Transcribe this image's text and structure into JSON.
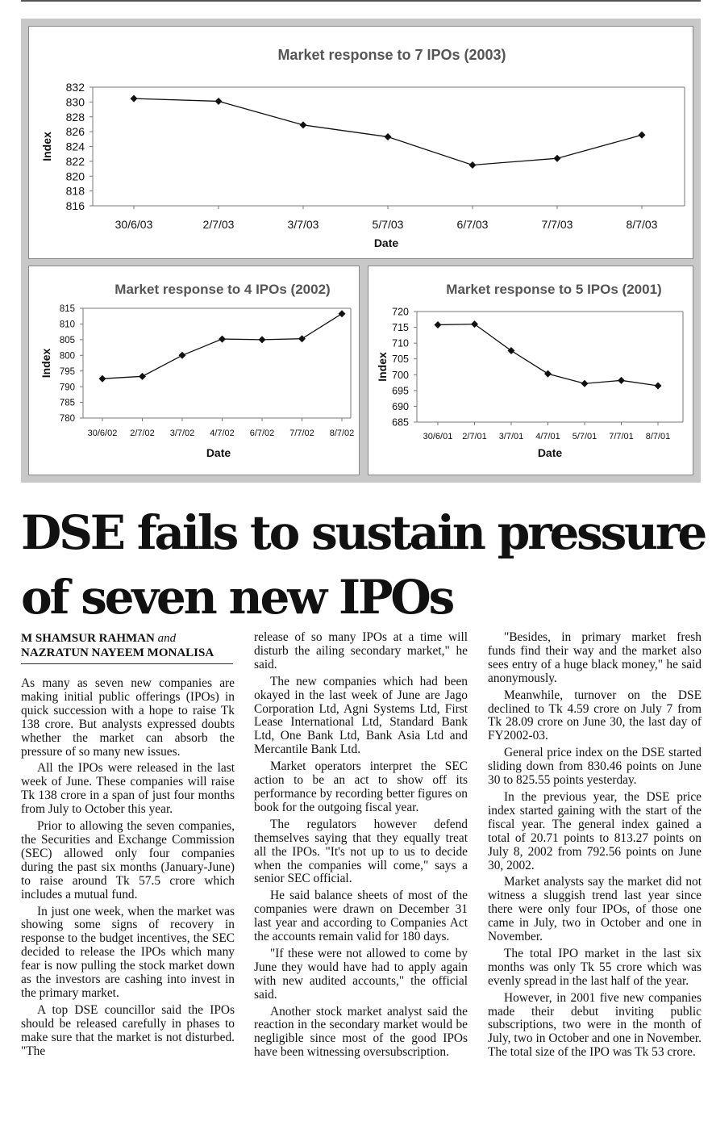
{
  "chart_data": [
    {
      "type": "line",
      "title": "Market response to 7 IPOs (2003)",
      "xlabel": "Date",
      "ylabel": "Index",
      "categories": [
        "30/6/03",
        "2/7/03",
        "3/7/03",
        "5/7/03",
        "6/7/03",
        "7/7/03",
        "8/7/03"
      ],
      "values": [
        830.46,
        830.1,
        826.9,
        825.3,
        821.5,
        822.4,
        825.55
      ],
      "ylim": [
        816,
        832
      ],
      "yticks": [
        816,
        818,
        820,
        822,
        824,
        826,
        828,
        830,
        832
      ],
      "color": "#111111"
    },
    {
      "type": "line",
      "title": "Market response to 4 IPOs (2002)",
      "xlabel": "Date",
      "ylabel": "Index",
      "categories": [
        "30/6/02",
        "2/7/02",
        "3/7/02",
        "4/7/02",
        "6/7/02",
        "7/7/02",
        "8/7/02"
      ],
      "values": [
        792.56,
        793.3,
        800.0,
        805.2,
        805.0,
        805.3,
        813.27
      ],
      "ylim": [
        780,
        815
      ],
      "yticks": [
        780,
        785,
        790,
        795,
        800,
        805,
        810,
        815
      ],
      "color": "#111111"
    },
    {
      "type": "line",
      "title": "Market response to 5 IPOs (2001)",
      "xlabel": "Date",
      "ylabel": "Index",
      "categories": [
        "30/6/01",
        "2/7/01",
        "3/7/01",
        "4/7/01",
        "5/7/01",
        "7/7/01",
        "8/7/01"
      ],
      "values": [
        715.8,
        716.0,
        707.6,
        700.3,
        697.2,
        698.2,
        696.5
      ],
      "ylim": [
        685,
        720
      ],
      "yticks": [
        685,
        690,
        695,
        700,
        705,
        710,
        715,
        720
      ],
      "color": "#111111"
    }
  ],
  "article": {
    "headline_line1": "DSE fails to sustain pressure",
    "headline_line2": "of seven new IPOs",
    "byline_author1": "M SHAMSUR RAHMAN",
    "byline_and": "and",
    "byline_author2": "NAZRATUN NAYEEM MONALISA",
    "col1": [
      "As many as seven new companies are making initial public offerings (IPOs) in quick succession with a hope to raise Tk 138 crore. But analysts expressed doubts whether the market can absorb the pressure of so many new issues.",
      "All the IPOs were released in the last week of June. These companies will raise Tk 138 crore in a span of just four months from July to October this year.",
      "Prior to allowing the seven companies, the Securities and Exchange Commission (SEC) allowed only four companies during the past six months (January-June) to raise around Tk 57.5 crore which includes a mutual fund.",
      "In just one week, when the market was showing some signs of recovery in response to the budget incentives, the SEC decided to release the IPOs which many fear is now pulling the stock market down as the investors are cashing into invest in the primary market.",
      "A top DSE councillor said the IPOs should be released carefully in phases to make sure that the market is not disturbed. \"The"
    ],
    "col2": [
      "release of so many IPOs at a time will disturb the ailing secondary market,\" he said.",
      "The new companies which had been okayed in the last week of June are Jago Corporation Ltd, Agni Systems Ltd, First Lease International Ltd, Standard Bank Ltd, One Bank Ltd, Bank Asia Ltd and Mercantile Bank Ltd.",
      "Market operators interpret the SEC action to be an act to show off its performance by recording better figures on book for the outgoing fiscal year.",
      "The regulators however defend themselves saying that they equally treat all the IPOs. \"It's not up to us to decide when the companies will come,\" says a senior SEC official.",
      "He said balance sheets of most of the companies were drawn on December 31 last year and according to Companies Act the accounts remain valid for 180 days.",
      "\"If these were not allowed to come by June they would have had to apply again with new audited accounts,\" the official said.",
      "Another stock market analyst said the reaction in the secondary market would be negligible since most of the good IPOs have been witnessing oversubscription."
    ],
    "col3": [
      "\"Besides, in primary market fresh funds find their way and the market also sees entry of a huge black money,\" he said anonymously.",
      "Meanwhile, turnover on the DSE declined to Tk 4.59 crore on July 7 from Tk 28.09 crore on June 30, the last day of FY2002-03.",
      "General price index on the DSE started sliding down from 830.46 points on June 30 to 825.55 points yesterday.",
      "In the previous year, the DSE price index started gaining with the start of the fiscal year. The general index gained a total of 20.71 points to 813.27 points on July 8, 2002 from 792.56 points on June 30, 2002.",
      "Market analysts say the market did not witness a sluggish trend last year since there were only four IPOs, of those one came in July, two in October and one in November.",
      "The total IPO market in the last six months was only Tk 55 crore which was evenly spread in the last half of the year.",
      "However, in 2001 five new companies made their debut inviting public subscriptions, two were in the month of July, two in October and one in November. The total size of the IPO was Tk 53 crore."
    ]
  }
}
